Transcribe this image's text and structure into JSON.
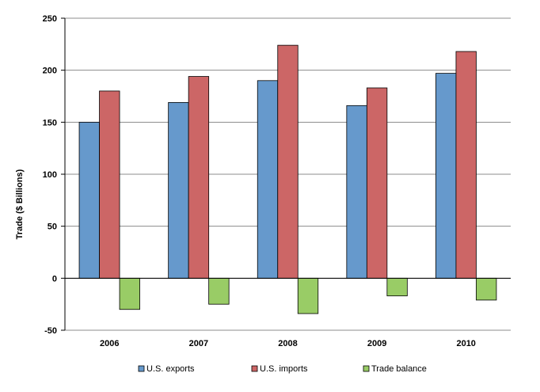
{
  "chart_data": {
    "type": "bar",
    "categories": [
      "2006",
      "2007",
      "2008",
      "2009",
      "2010"
    ],
    "series": [
      {
        "name": "U.S. exports",
        "values": [
          150,
          169,
          190,
          166,
          197
        ],
        "color": "#6699cc"
      },
      {
        "name": "U.S. imports",
        "values": [
          180,
          194,
          224,
          183,
          218
        ],
        "color": "#cc6666"
      },
      {
        "name": "Trade balance",
        "values": [
          -30,
          -25,
          -34,
          -17,
          -21
        ],
        "color": "#99cc66"
      }
    ],
    "ylabel": "Trade ($ Billions)",
    "ylim": [
      -50,
      250
    ],
    "yticks": [
      -50,
      0,
      50,
      100,
      150,
      200,
      250
    ],
    "grid": true,
    "legend_position": "bottom"
  }
}
